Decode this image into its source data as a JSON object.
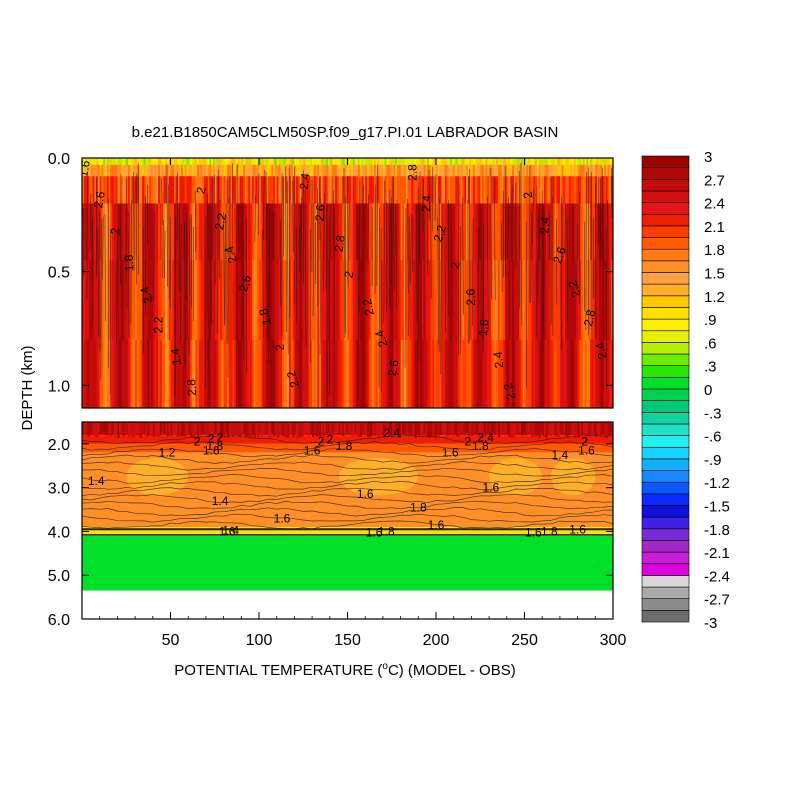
{
  "chart_data": {
    "type": "heatmap",
    "title": "b.e21.B1850CAM5CLM50SP.f09_g17.PI.01 LABRADOR BASIN",
    "xlabel_parts": {
      "before": "POTENTIAL TEMPERATURE (",
      "sup": "o",
      "after": "C) (MODEL - OBS)"
    },
    "ylabel": "DEPTH (km)",
    "xlim": [
      0,
      300
    ],
    "x_ticks": [
      "50",
      "100",
      "150",
      "200",
      "250",
      "300"
    ],
    "upper_panel": {
      "ylim": [
        0.0,
        1.1
      ],
      "y_ticks": [
        "0.0",
        "0.5",
        "1.0"
      ]
    },
    "lower_panel": {
      "ylim": [
        1.5,
        6.0
      ],
      "y_ticks": [
        "2.0",
        "3.0",
        "4.0",
        "5.0",
        "6.0"
      ]
    },
    "colorbar": {
      "levels": [
        -3,
        -2.85,
        -2.7,
        -2.55,
        -2.4,
        -2.25,
        -2.1,
        -1.95,
        -1.8,
        -1.65,
        -1.5,
        -1.35,
        -1.2,
        -1.05,
        -0.9,
        -0.75,
        -0.6,
        -0.45,
        -0.3,
        -0.15,
        0,
        0.15,
        0.3,
        0.45,
        0.6,
        0.75,
        0.9,
        1.05,
        1.2,
        1.35,
        1.5,
        1.65,
        1.8,
        1.95,
        2.1,
        2.25,
        2.4,
        2.55,
        2.7,
        2.85,
        3
      ],
      "labels": [
        "3",
        "2.7",
        "2.4",
        "2.1",
        "1.8",
        "1.5",
        "1.2",
        ".9",
        ".6",
        ".3",
        "0",
        "-.3",
        "-.6",
        "-.9",
        "-1.2",
        "-1.5",
        "-1.8",
        "-2.1",
        "-2.4",
        "-2.7",
        "-3"
      ],
      "colors": [
        "#6e6e6e",
        "#8c8c8c",
        "#aaaaaa",
        "#d7d7d7",
        "#e000e0",
        "#c81ed8",
        "#a028c8",
        "#7a2ad2",
        "#4020e6",
        "#1010d8",
        "#0a28ff",
        "#0a5aff",
        "#1488ff",
        "#10b0ff",
        "#18d2ff",
        "#20f0f0",
        "#20e0c8",
        "#10d2a0",
        "#00c878",
        "#00d250",
        "#00e028",
        "#28e600",
        "#6eec00",
        "#b4ee00",
        "#e8f000",
        "#fff000",
        "#ffde00",
        "#ffc800",
        "#ffb028",
        "#ffa040",
        "#ff9028",
        "#ff7a10",
        "#ff5a00",
        "#ff3c00",
        "#f01e00",
        "#e61414",
        "#d21010",
        "#c40c0c",
        "#b00808",
        "#9c0404"
      ]
    },
    "contour_labels_upper": [
      "1.6",
      "2.6",
      "2",
      "1.8",
      "2.4",
      "2.2",
      "1.4",
      "2.8",
      "2",
      "2.2",
      "2.4",
      "2.6",
      "1.8",
      "2",
      "2.2",
      "2.4",
      "2.6",
      "2.8",
      "2",
      "2.2",
      "2.4",
      "2.6",
      "2.8",
      "2.4",
      "2.2",
      "2",
      "2.6",
      "1.6",
      "2.4",
      "2.2",
      "2",
      "2.4",
      "2.6",
      "2.2",
      "2.8",
      "2.4"
    ],
    "contour_labels_lower": [
      {
        "x": 65,
        "d": 1.95,
        "t": "2"
      },
      {
        "x": 73,
        "d": 1.88,
        "t": "2"
      },
      {
        "x": 78,
        "d": 1.85,
        "t": "2"
      },
      {
        "x": 75,
        "d": 2.05,
        "t": "1.8"
      },
      {
        "x": 73,
        "d": 2.15,
        "t": "1.6"
      },
      {
        "x": 48,
        "d": 2.2,
        "t": "1.2"
      },
      {
        "x": 8,
        "d": 2.85,
        "t": "1.4"
      },
      {
        "x": 78,
        "d": 3.3,
        "t": "1.4"
      },
      {
        "x": 113,
        "d": 3.7,
        "t": "1.6"
      },
      {
        "x": 135,
        "d": 1.95,
        "t": "2"
      },
      {
        "x": 140,
        "d": 1.9,
        "t": "2"
      },
      {
        "x": 148,
        "d": 2.05,
        "t": "1.8"
      },
      {
        "x": 130,
        "d": 2.15,
        "t": "1.6"
      },
      {
        "x": 160,
        "d": 3.15,
        "t": "1.6"
      },
      {
        "x": 190,
        "d": 3.45,
        "t": "1.8"
      },
      {
        "x": 200,
        "d": 3.85,
        "t": "1.6"
      },
      {
        "x": 172,
        "d": 4.0,
        "t": "1.8"
      },
      {
        "x": 165,
        "d": 4.02,
        "t": "1.6"
      },
      {
        "x": 175,
        "d": 1.75,
        "t": "2.4"
      },
      {
        "x": 218,
        "d": 1.95,
        "t": "2"
      },
      {
        "x": 228,
        "d": 1.85,
        "t": "2.4"
      },
      {
        "x": 225,
        "d": 2.05,
        "t": "1.8"
      },
      {
        "x": 208,
        "d": 2.2,
        "t": "1.6"
      },
      {
        "x": 231,
        "d": 3.0,
        "t": "1.6"
      },
      {
        "x": 270,
        "d": 2.25,
        "t": "1.4"
      },
      {
        "x": 285,
        "d": 2.15,
        "t": "1.6"
      },
      {
        "x": 284,
        "d": 1.95,
        "t": "2"
      },
      {
        "x": 264,
        "d": 4.0,
        "t": "1.8"
      },
      {
        "x": 255,
        "d": 4.02,
        "t": "1.6"
      },
      {
        "x": 280,
        "d": 3.95,
        "t": "1.6"
      },
      {
        "x": 82,
        "d": 4.0,
        "t": "1.6"
      },
      {
        "x": 84,
        "d": 3.98,
        "t": "1.4"
      }
    ]
  }
}
